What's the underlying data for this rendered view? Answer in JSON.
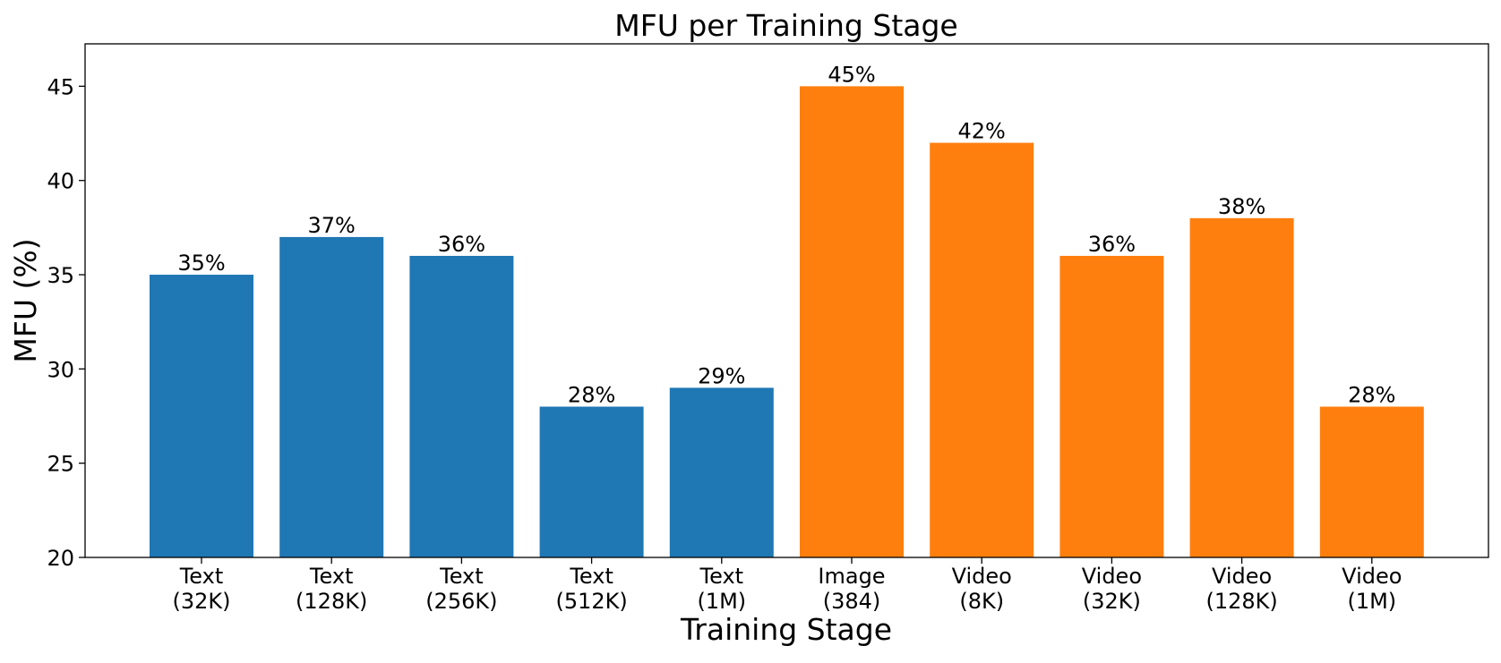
{
  "chart_data": {
    "type": "bar",
    "title": "MFU per Training Stage",
    "xlabel": "Training Stage",
    "ylabel": "MFU (%)",
    "ylim": [
      20,
      47.25
    ],
    "yticks": [
      20,
      25,
      30,
      35,
      40,
      45
    ],
    "grid": false,
    "categories": [
      [
        "Text",
        "(32K)"
      ],
      [
        "Text",
        "(128K)"
      ],
      [
        "Text",
        "(256K)"
      ],
      [
        "Text",
        "(512K)"
      ],
      [
        "Text",
        "(1M)"
      ],
      [
        "Image",
        "(384)"
      ],
      [
        "Video",
        "(8K)"
      ],
      [
        "Video",
        "(32K)"
      ],
      [
        "Video",
        "(128K)"
      ],
      [
        "Video",
        "(1M)"
      ]
    ],
    "values": [
      35,
      37,
      36,
      28,
      29,
      45,
      42,
      36,
      38,
      28
    ],
    "data_labels": [
      "35%",
      "37%",
      "36%",
      "28%",
      "29%",
      "45%",
      "42%",
      "36%",
      "38%",
      "28%"
    ],
    "bar_groups": [
      "text",
      "text",
      "text",
      "text",
      "text",
      "vision",
      "vision",
      "vision",
      "vision",
      "vision"
    ],
    "colors": {
      "text": "#1f77b4",
      "vision": "#ff7f0e",
      "axis": "#000000"
    }
  }
}
